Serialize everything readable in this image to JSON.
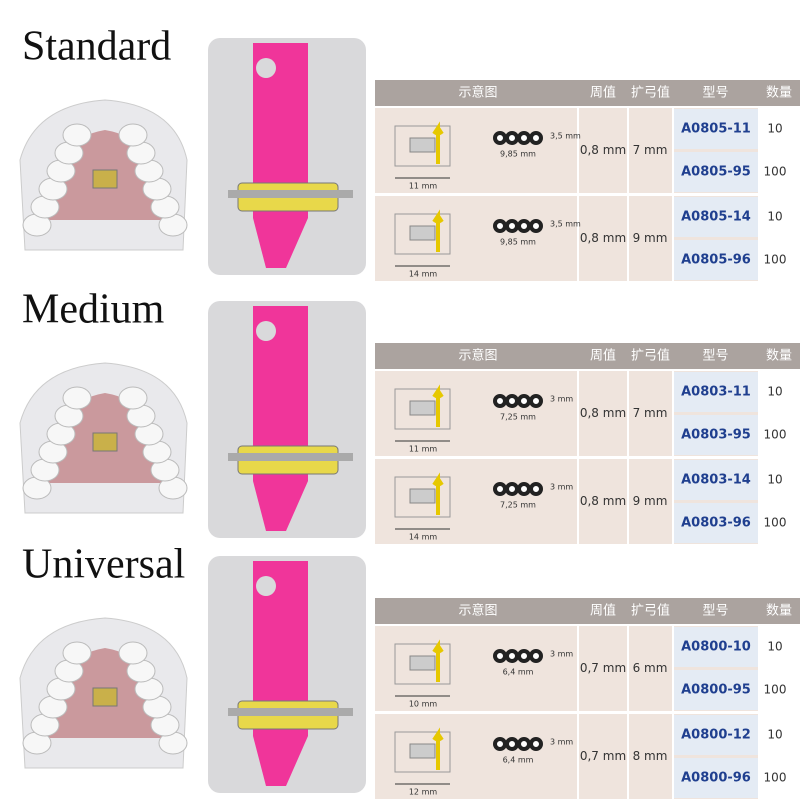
{
  "table_headers": [
    "示意图",
    "周值",
    "扩弓值",
    "型号",
    "数量"
  ],
  "sections": [
    {
      "label": "Standard",
      "rows": [
        {
          "width": "11 mm",
          "height": "3,5 mm",
          "length": "9,85 mm",
          "pitch": "0,8 mm",
          "expansion": "7 mm",
          "models": [
            {
              "code": "A0805-11",
              "qty": 10
            },
            {
              "code": "A0805-95",
              "qty": 100
            }
          ]
        },
        {
          "width": "14 mm",
          "height": "3,5 mm",
          "length": "9,85 mm",
          "pitch": "0,8 mm",
          "expansion": "9 mm",
          "models": [
            {
              "code": "A0805-14",
              "qty": 10
            },
            {
              "code": "A0805-96",
              "qty": 100
            }
          ]
        }
      ]
    },
    {
      "label": "Medium",
      "rows": [
        {
          "width": "11 mm",
          "height": "3 mm",
          "length": "7,25 mm",
          "pitch": "0,8 mm",
          "expansion": "7 mm",
          "models": [
            {
              "code": "A0803-11",
              "qty": 10
            },
            {
              "code": "A0803-95",
              "qty": 100
            }
          ]
        },
        {
          "width": "14 mm",
          "height": "3 mm",
          "length": "7,25 mm",
          "pitch": "0,8 mm",
          "expansion": "9 mm",
          "models": [
            {
              "code": "A0803-14",
              "qty": 10
            },
            {
              "code": "A0803-96",
              "qty": 100
            }
          ]
        }
      ]
    },
    {
      "label": "Universal",
      "rows": [
        {
          "width": "10 mm",
          "height": "3 mm",
          "length": "6,4 mm",
          "pitch": "0,7 mm",
          "expansion": "6 mm",
          "models": [
            {
              "code": "A0800-10",
              "qty": 10
            },
            {
              "code": "A0800-95",
              "qty": 100
            }
          ]
        },
        {
          "width": "12 mm",
          "height": "3 mm",
          "length": "6,4 mm",
          "pitch": "0,7 mm",
          "expansion": "8 mm",
          "models": [
            {
              "code": "A0800-12",
              "qty": 10
            },
            {
              "code": "A0800-96",
              "qty": 100
            }
          ]
        }
      ]
    }
  ]
}
